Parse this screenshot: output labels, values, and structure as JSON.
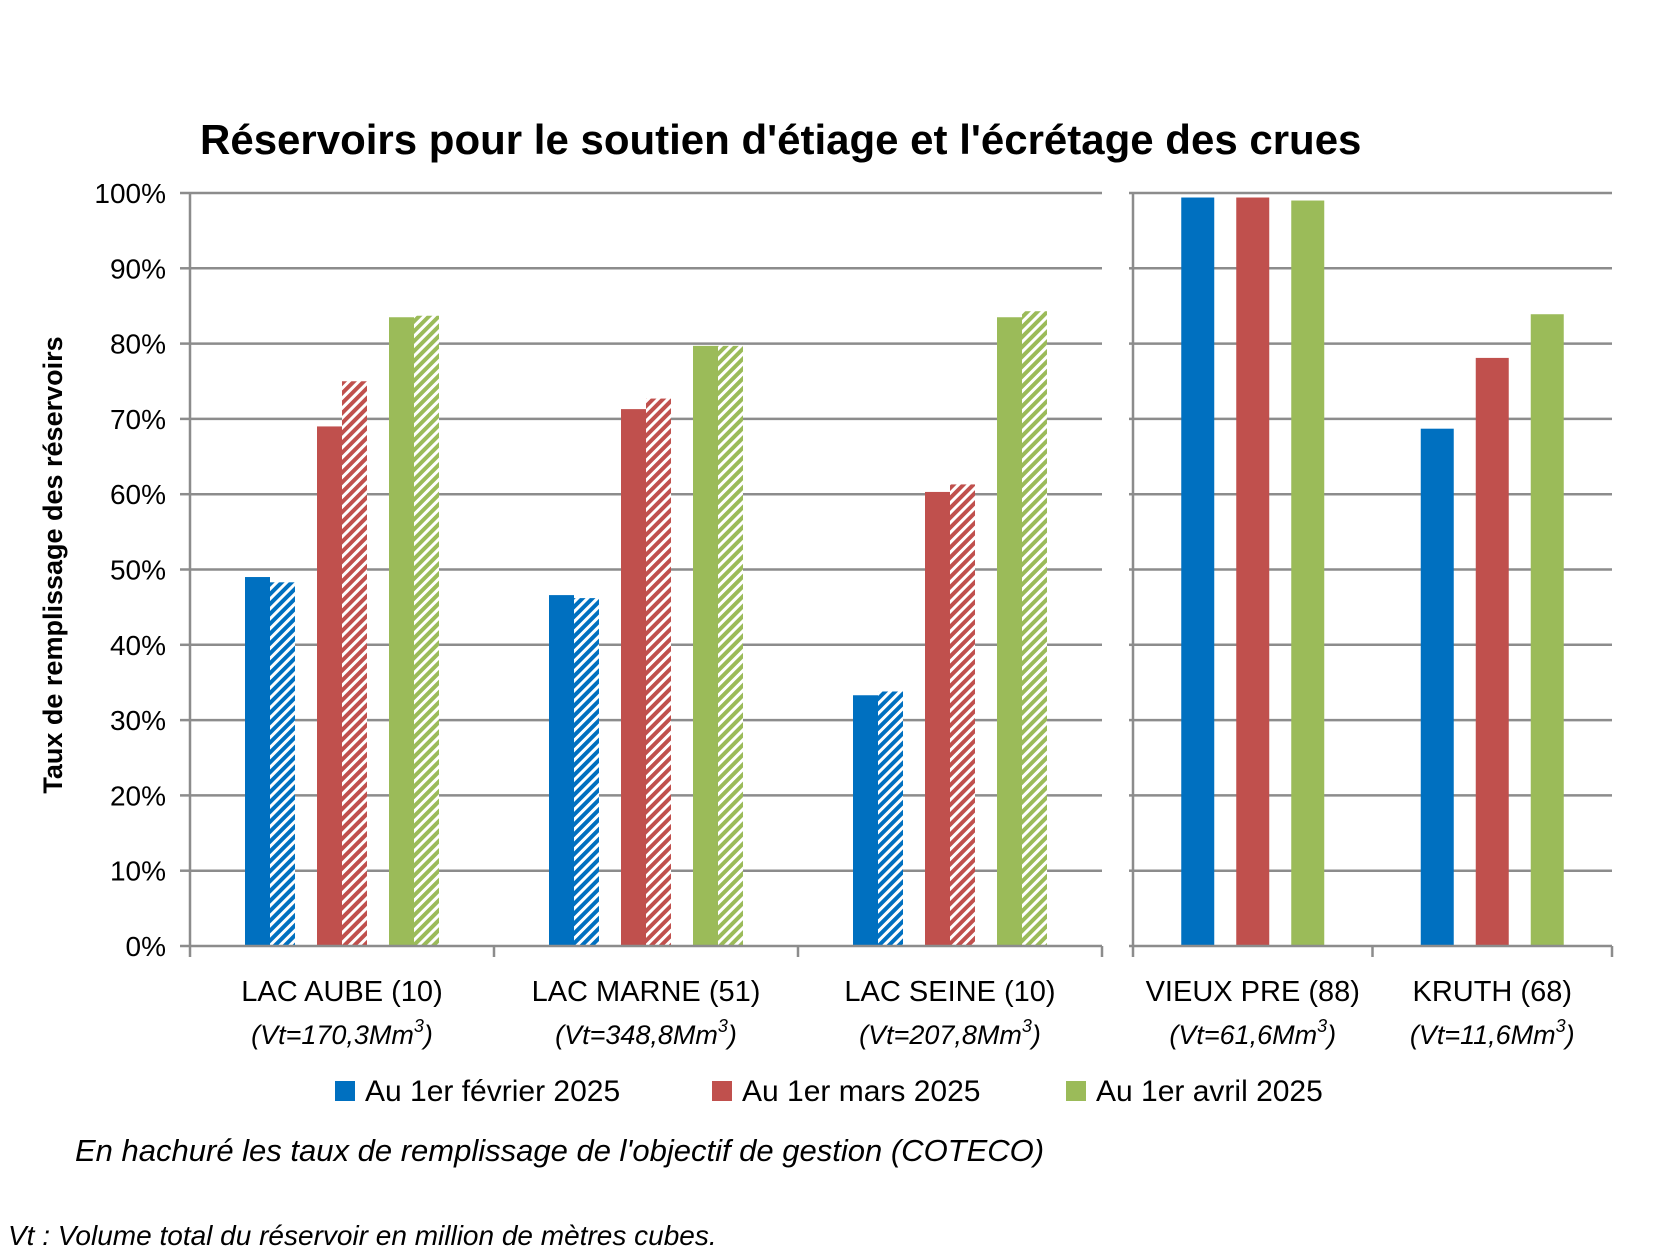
{
  "chart_data": {
    "type": "bar",
    "title": "Réservoirs pour le soutien d'étiage et l'écrétage des crues",
    "ylabel": "Taux de remplissage des réservoirs",
    "ylim": [
      0,
      100
    ],
    "y_ticks": [
      "0%",
      "10%",
      "20%",
      "30%",
      "40%",
      "50%",
      "60%",
      "70%",
      "80%",
      "90%",
      "100%"
    ],
    "grid": true,
    "legend_position": "bottom",
    "series": [
      {
        "name": "Au 1er février 2025",
        "color": "#0070C0"
      },
      {
        "name": "Au 1er mars 2025",
        "color": "#C0504D"
      },
      {
        "name": "Au 1er avril 2025",
        "color": "#9BBB59"
      }
    ],
    "panels": [
      {
        "categories": [
          {
            "name": "LAC AUBE (10)",
            "volume": "(Vt=170,3Mm",
            "volume_sup": "3",
            "volume_end": ")",
            "values": [
              49,
              69,
              83.5
            ],
            "objective": [
              48.3,
              75,
              83.7
            ]
          },
          {
            "name": "LAC MARNE (51)",
            "volume": "(Vt=348,8Mm",
            "volume_sup": "3",
            "volume_end": ")",
            "values": [
              46.6,
              71.3,
              79.7
            ],
            "objective": [
              46.2,
              72.7,
              79.7
            ]
          },
          {
            "name": "LAC SEINE (10)",
            "volume": "(Vt=207,8Mm",
            "volume_sup": "3",
            "volume_end": ")",
            "values": [
              33.3,
              60.3,
              83.5
            ],
            "objective": [
              33.8,
              61.3,
              84.3
            ]
          }
        ]
      },
      {
        "categories": [
          {
            "name": "VIEUX PRE (88)",
            "volume": "(Vt=61,6Mm",
            "volume_sup": "3",
            "volume_end": ")",
            "values": [
              99.4,
              99.4,
              99
            ]
          },
          {
            "name": "KRUTH (68)",
            "volume": "(Vt=11,6Mm",
            "volume_sup": "3",
            "volume_end": ")",
            "values": [
              68.7,
              78.1,
              83.9
            ]
          }
        ]
      }
    ]
  },
  "notes": {
    "hatch_note": "En hachuré les taux de remplissage de l'objectif de gestion (COTECO)",
    "vt_note": "Vt : Volume total du réservoir en million de mètres cubes."
  }
}
